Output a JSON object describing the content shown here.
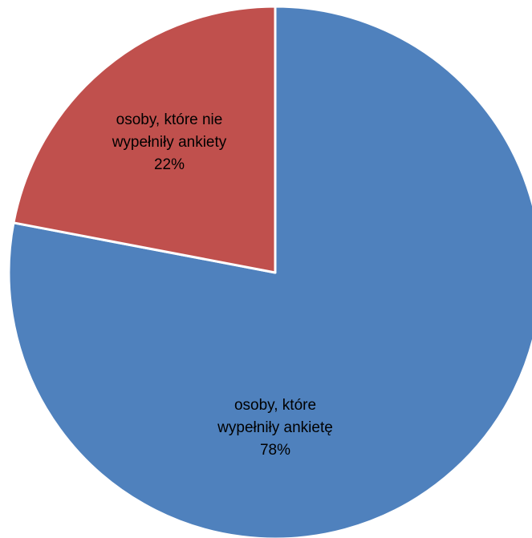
{
  "chart_data": {
    "type": "pie",
    "title": "",
    "legend": "none",
    "start_angle_deg": 0,
    "direction": "clockwise",
    "slices": [
      {
        "label_lines": [
          "osoby, które",
          "wypełniły ankietę"
        ],
        "percent_label": "78%",
        "value": 78,
        "color": "#4F81BD"
      },
      {
        "label_lines": [
          "osoby, które nie",
          "wypełniły ankiety"
        ],
        "percent_label": "22%",
        "value": 22,
        "color": "#C0504D"
      }
    ]
  }
}
